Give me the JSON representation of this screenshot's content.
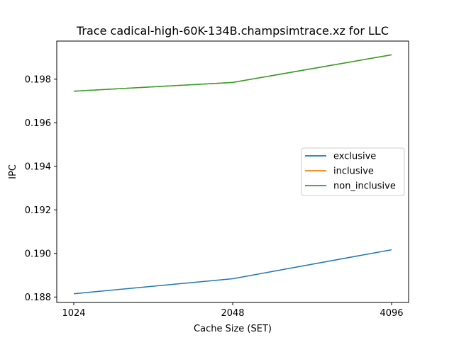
{
  "chart_data": {
    "type": "line",
    "title": "Trace cadical-high-60K-134B.champsimtrace.xz for LLC",
    "xlabel": "Cache Size (SET)",
    "ylabel": "IPC",
    "x": [
      "1024",
      "2048",
      "4096"
    ],
    "ylim": [
      0.18775,
      0.19975
    ],
    "yticks": [
      "0.188",
      "0.190",
      "0.192",
      "0.194",
      "0.196",
      "0.198"
    ],
    "yticks_values": [
      0.188,
      0.19,
      0.192,
      0.194,
      0.196,
      0.198
    ],
    "grid": false,
    "legend_position": "center-right",
    "series": [
      {
        "name": "exclusive",
        "color": "#1f77b4",
        "values": [
          0.18815,
          0.18884,
          0.19017
        ]
      },
      {
        "name": "inclusive",
        "color": "#ff7f0e",
        "values": [
          0.19745,
          0.19785,
          0.19912
        ]
      },
      {
        "name": "non_inclusive",
        "color": "#2ca02c",
        "values": [
          0.19745,
          0.19785,
          0.19912
        ]
      }
    ]
  }
}
